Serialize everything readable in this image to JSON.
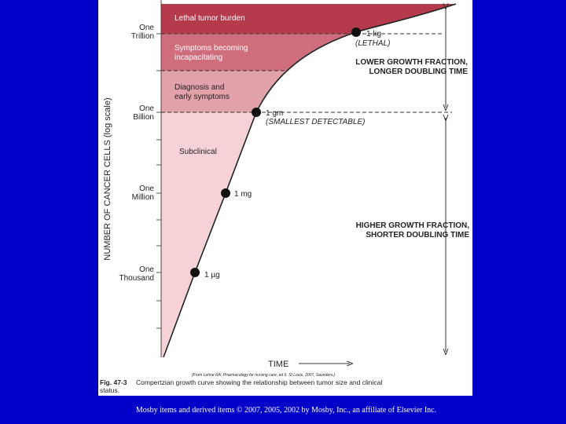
{
  "y_axis": {
    "label": "NUMBER OF CANCER CELLS (log scale)",
    "ticks": [
      [
        "One",
        "Trillion"
      ],
      [
        "One",
        "Billion"
      ],
      [
        "One",
        "Million"
      ],
      [
        "One",
        "Thousand"
      ]
    ]
  },
  "x_axis": {
    "label": "TIME"
  },
  "zones": [
    [
      "Lethal tumor burden"
    ],
    [
      "Symptoms becoming",
      "incapacitating"
    ],
    [
      "Diagnosis and",
      "early symptoms"
    ],
    [
      "Subclinical"
    ]
  ],
  "points": [
    {
      "label": "1 kg",
      "note": "(LETHAL)"
    },
    {
      "label": "1 gm",
      "note": "(SMALLEST DETECTABLE)"
    },
    {
      "label": "1 mg"
    },
    {
      "label": "1 µg"
    }
  ],
  "annotations": [
    [
      "LOWER GROWTH FRACTION,",
      "LONGER DOUBLING TIME"
    ],
    [
      "HIGHER GROWTH FRACTION,",
      "SHORTER DOUBLING TIME"
    ]
  ],
  "source": "(From Lehne RA: Pharmacology for nursing care, ed 6. St Louis, 2007, Saunders.)",
  "caption": {
    "number": "Fig. 47-3",
    "lines": [
      "Compertzian growth curve showing the relationship between tumor size and clinical",
      "status."
    ]
  },
  "footer": "Mosby items and derived items © 2007, 2005, 2002 by Mosby, Inc., an affiliate of Elsevier Inc."
}
